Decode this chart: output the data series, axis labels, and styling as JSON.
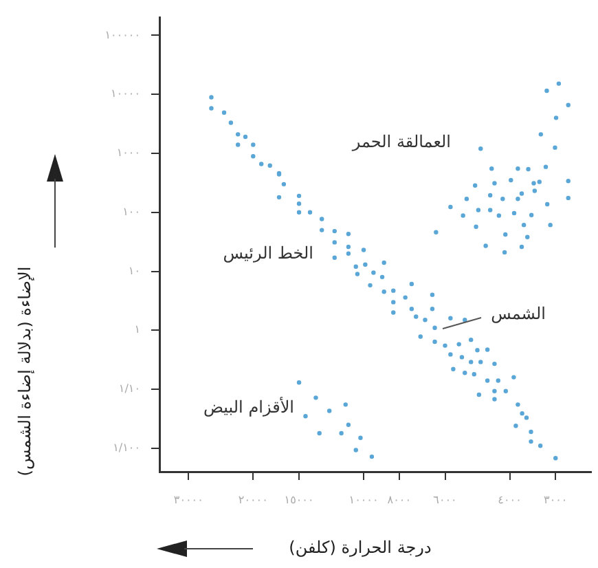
{
  "chart_data": {
    "type": "scatter",
    "xlabel": "درجة الحرارة (كلفن)",
    "ylabel": "الإضاءة (بدلالة إضاءة الشمس)",
    "log": "xy",
    "marker": "circle",
    "xlim": [
      36000,
      2400
    ],
    "ylim": [
      0.004,
      200000
    ],
    "xticks": [
      {
        "value": 30000,
        "label": "٣٠٠٠٠"
      },
      {
        "value": 20000,
        "label": "٢٠٠٠٠"
      },
      {
        "value": 15000,
        "label": "١٥٠٠٠"
      },
      {
        "value": 10000,
        "label": "١٠٠٠٠"
      },
      {
        "value": 8000,
        "label": "٨٠٠٠"
      },
      {
        "value": 6000,
        "label": "٦٠٠٠"
      },
      {
        "value": 4000,
        "label": "٤٠٠٠"
      },
      {
        "value": 3000,
        "label": "٣٠٠٠"
      }
    ],
    "yticks": [
      {
        "value": 100000,
        "label": "١٠٠٠٠٠"
      },
      {
        "value": 10000,
        "label": "١٠٠٠٠"
      },
      {
        "value": 1000,
        "label": "١٠٠٠"
      },
      {
        "value": 100,
        "label": "١٠٠"
      },
      {
        "value": 10,
        "label": "١٠"
      },
      {
        "value": 1,
        "label": "١"
      },
      {
        "value": 0.1,
        "label": "١/١٠"
      },
      {
        "value": 0.01,
        "label": "١/١٠٠"
      }
    ],
    "annotations": [
      "العمالقة الحمر",
      "الخط الرئيس",
      "الأقزام البيض",
      "الشمس"
    ],
    "series": [
      {
        "color": "#5aa6d6",
        "x": [
          26000,
          26000,
          24000,
          23000,
          22000,
          21000,
          22000,
          20000,
          20000,
          19000,
          18000,
          17000,
          17000,
          16500,
          17000,
          15000,
          15000,
          15000,
          14000,
          13000,
          13000,
          12000,
          11000,
          12000,
          11000,
          10000,
          11000,
          12000,
          10500,
          9900,
          8800,
          9400,
          10400,
          8900,
          9600,
          8800,
          8300,
          7400,
          7700,
          8300,
          8300,
          7400,
          7200,
          6500,
          6500,
          6800,
          6400,
          5800,
          5300,
          7000,
          6400,
          6000,
          5500,
          5100,
          4900,
          4600,
          5800,
          5400,
          5100,
          4800,
          4400,
          5700,
          5300,
          5000,
          4600,
          4300,
          3900,
          4850,
          4400,
          4100,
          4400,
          3800,
          3700,
          3600,
          3850,
          3500,
          3300,
          3500,
          3000,
          15000,
          13500,
          14400,
          11200,
          12400,
          13200,
          11500,
          11000,
          10200,
          10500,
          9500,
          4800,
          4480,
          3800,
          3560,
          3190,
          4970,
          4400,
          3970,
          3440,
          3320,
          5800,
          5240,
          4520,
          4180,
          3800,
          3710,
          3420,
          5360,
          4870,
          4520,
          4280,
          3890,
          3490,
          3160,
          2770,
          2770,
          4940,
          3660,
          3100,
          6350,
          4650,
          4110,
          4130,
          3710,
          3580,
          3290,
          3010,
          3170,
          2940,
          2770,
          2990
        ],
        "values": [
          8900,
          5800,
          4900,
          3300,
          2100,
          1900,
          1400,
          1400,
          890,
          660,
          620,
          460,
          440,
          300,
          180,
          190,
          140,
          100,
          100,
          77,
          50,
          48,
          43,
          31,
          26,
          23,
          20,
          17,
          12,
          13,
          14,
          9.5,
          9.0,
          8.0,
          5.8,
          4.5,
          4.7,
          6.1,
          3.6,
          3.0,
          2.0,
          2.3,
          1.7,
          4.0,
          2.3,
          1.5,
          1.1,
          1.6,
          1.5,
          0.78,
          0.64,
          0.55,
          0.58,
          0.69,
          0.46,
          0.47,
          0.39,
          0.35,
          0.29,
          0.29,
          0.27,
          0.22,
          0.19,
          0.18,
          0.14,
          0.14,
          0.16,
          0.081,
          0.093,
          0.093,
          0.068,
          0.055,
          0.039,
          0.033,
          0.024,
          0.019,
          0.011,
          0.013,
          0.0068,
          0.13,
          0.072,
          0.035,
          0.055,
          0.043,
          0.018,
          0.018,
          0.025,
          0.015,
          0.0093,
          0.0072,
          1200,
          550,
          550,
          540,
          590,
          285,
          311,
          351,
          311,
          328,
          123,
          169,
          194,
          169,
          169,
          208,
          231,
          88,
          109,
          109,
          88,
          97,
          90,
          137,
          339,
          175,
          57,
          61,
          61,
          46,
          27,
          42,
          21,
          26,
          38,
          2100,
          1250,
          11500,
          15200,
          6600,
          4000
        ]
      }
    ]
  }
}
